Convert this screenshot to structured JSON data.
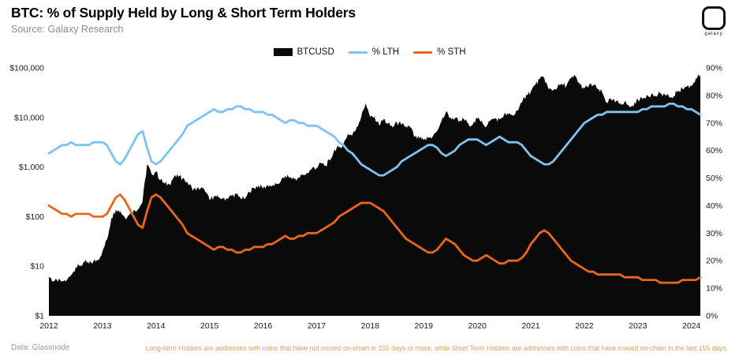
{
  "header": {
    "title": "BTC: % of Supply Held by Long & Short Term Holders",
    "source": "Source: Galaxy Research",
    "logo_text": "galaxy"
  },
  "legend": [
    {
      "label": "BTCUSD",
      "color": "#0a0a0a",
      "type": "area"
    },
    {
      "label": "% LTH",
      "color": "#7ec3ef",
      "type": "line"
    },
    {
      "label": "% STH",
      "color": "#e8671b",
      "type": "line"
    }
  ],
  "footer": {
    "data_source": "Data: Glassnode",
    "note": "Long-term Holders are addresses with coins that have not moved on-chain in 155 days or more, while Short Term Holders are addresses with coins that have moved on-chain in the last 155 days.",
    "note_color": "#e0a165"
  },
  "chart_data": {
    "type": "line",
    "title": "BTC: % of Supply Held by Long & Short Term Holders",
    "legend_position": "top",
    "grid": false,
    "x_start": 2012.0,
    "x_step_months": 1,
    "x_ticks": [
      2012,
      2013,
      2014,
      2015,
      2016,
      2017,
      2018,
      2019,
      2020,
      2021,
      2022,
      2023,
      2024
    ],
    "left_axis": {
      "scale": "log",
      "range": [
        1,
        100000
      ],
      "tick_values": [
        1,
        10,
        100,
        1000,
        10000,
        100000
      ],
      "tick_labels": [
        "$1",
        "$10",
        "$100",
        "$1,000",
        "$10,000",
        "$100,000"
      ]
    },
    "right_axis": {
      "scale": "linear",
      "range": [
        0,
        90
      ],
      "tick_values": [
        0,
        10,
        20,
        30,
        40,
        50,
        60,
        70,
        80,
        90
      ],
      "tick_labels": [
        "0%",
        "10%",
        "20%",
        "30%",
        "40%",
        "50%",
        "60%",
        "70%",
        "80%",
        "90%"
      ]
    },
    "series": [
      {
        "name": "BTCUSD",
        "axis": "left",
        "style": "area",
        "color": "#0a0a0a",
        "values": [
          6.2,
          5.0,
          4.9,
          5.0,
          5.2,
          6.7,
          9.4,
          10.0,
          12.4,
          11.2,
          12.6,
          13.4,
          20,
          34,
          93,
          139,
          129,
          97,
          106,
          135,
          141,
          204,
          1130,
          732,
          806,
          550,
          458,
          446,
          627,
          635,
          589,
          506,
          388,
          338,
          378,
          320,
          217,
          254,
          244,
          236,
          230,
          263,
          284,
          230,
          236,
          314,
          377,
          430,
          368,
          437,
          416,
          448,
          531,
          673,
          624,
          575,
          609,
          700,
          745,
          963,
          970,
          1180,
          1080,
          1351,
          2286,
          2480,
          2875,
          4703,
          4338,
          6468,
          10233,
          19345,
          10221,
          10397,
          6973,
          9240,
          7494,
          6404,
          7780,
          7037,
          6625,
          6317,
          4017,
          3742,
          3457,
          3854,
          4105,
          5350,
          8574,
          12900,
          10085,
          9630,
          8293,
          9199,
          7569,
          7193,
          9350,
          8599,
          6438,
          8629,
          9454,
          9137,
          11323,
          11680,
          10784,
          13781,
          19695,
          28990,
          33114,
          45240,
          58800,
          63500,
          37332,
          35040,
          41553,
          47166,
          43790,
          61318,
          67500,
          46217,
          38483,
          43193,
          45539,
          37650,
          31792,
          19985,
          23303,
          20050,
          19424,
          20495,
          17163,
          16548,
          23125,
          23147,
          28478,
          29268,
          27220,
          30477,
          29230,
          25932,
          26962,
          34656,
          37718,
          42265,
          42580,
          61200,
          73000
        ]
      },
      {
        "name": "% LTH",
        "axis": "right",
        "style": "line",
        "color": "#7ec3ef",
        "values": [
          59,
          60,
          61,
          62,
          62,
          63,
          62,
          62,
          62,
          62,
          63,
          63,
          63,
          62,
          59,
          56,
          55,
          57,
          60,
          63,
          66,
          67,
          61,
          56,
          55,
          56,
          58,
          60,
          62,
          64,
          66,
          69,
          70,
          71,
          72,
          73,
          74,
          75,
          74,
          74,
          75,
          75,
          76,
          76,
          75,
          75,
          74,
          74,
          74,
          73,
          73,
          72,
          71,
          70,
          71,
          71,
          70,
          70,
          69,
          69,
          69,
          68,
          67,
          66,
          65,
          63,
          62,
          60,
          59,
          57,
          55,
          54,
          53,
          52,
          51,
          51,
          52,
          53,
          54,
          56,
          57,
          58,
          59,
          60,
          61,
          62,
          62,
          61,
          59,
          58,
          59,
          60,
          62,
          63,
          64,
          64,
          64,
          63,
          62,
          63,
          64,
          65,
          64,
          63,
          63,
          63,
          62,
          60,
          58,
          57,
          56,
          55,
          55,
          56,
          58,
          60,
          62,
          64,
          66,
          68,
          70,
          71,
          72,
          73,
          73,
          74,
          74,
          74,
          74,
          74,
          74,
          74,
          74,
          75,
          75,
          76,
          76,
          76,
          76,
          77,
          77,
          76,
          76,
          75,
          75,
          74,
          73
        ]
      },
      {
        "name": "% STH",
        "axis": "right",
        "style": "line",
        "color": "#e8671b",
        "values": [
          40,
          39,
          38,
          37,
          37,
          36,
          37,
          37,
          37,
          37,
          36,
          36,
          36,
          37,
          40,
          43,
          44,
          42,
          39,
          36,
          33,
          32,
          38,
          43,
          44,
          43,
          41,
          39,
          37,
          35,
          33,
          30,
          29,
          28,
          27,
          26,
          25,
          24,
          25,
          25,
          24,
          24,
          23,
          23,
          24,
          24,
          25,
          25,
          25,
          26,
          26,
          27,
          28,
          29,
          28,
          28,
          29,
          29,
          30,
          30,
          30,
          31,
          32,
          33,
          34,
          36,
          37,
          38,
          39,
          40,
          41,
          41,
          41,
          40,
          39,
          38,
          36,
          34,
          32,
          30,
          28,
          27,
          26,
          25,
          24,
          23,
          23,
          24,
          26,
          28,
          27,
          26,
          24,
          22,
          21,
          20,
          20,
          21,
          22,
          21,
          20,
          19,
          19,
          20,
          20,
          20,
          21,
          23,
          26,
          28,
          30,
          31,
          30,
          28,
          26,
          24,
          22,
          20,
          19,
          18,
          17,
          16,
          16,
          15,
          15,
          15,
          15,
          15,
          15,
          14,
          14,
          14,
          14,
          13,
          13,
          13,
          13,
          12,
          12,
          12,
          12,
          12,
          13,
          13,
          13,
          13,
          14
        ]
      }
    ]
  }
}
